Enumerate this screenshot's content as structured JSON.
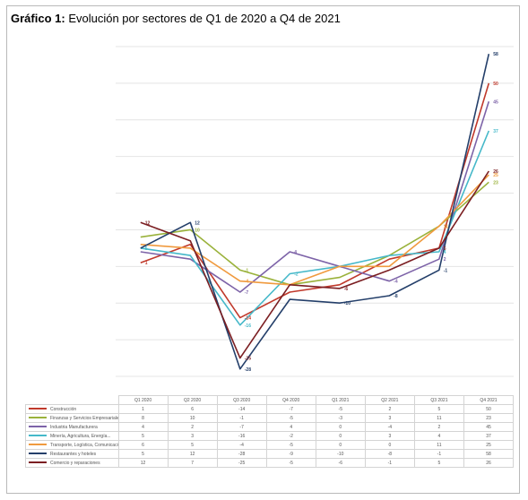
{
  "title": {
    "prefix": "Gráfico 1:",
    "text": "Evolución por sectores de Q1 de 2020 a Q4  de 2021"
  },
  "chart_data": {
    "type": "line",
    "categories": [
      "Q1 2020",
      "Q2 2020",
      "Q3 2020",
      "Q4 2020",
      "Q1 2021",
      "Q2 2021",
      "Q3 2021",
      "Q4 2021"
    ],
    "ylim": [
      -30,
      60
    ],
    "grid": true,
    "legend": "table-below",
    "series": [
      {
        "name": "Construcción",
        "color": "#c0392b",
        "values": [
          1,
          6,
          -14,
          -7,
          -5,
          2,
          5,
          50
        ]
      },
      {
        "name": "Finanzas y Servicios Empresariales",
        "color": "#9ab23b",
        "values": [
          8,
          10,
          -1,
          -5,
          -3,
          3,
          11,
          23
        ]
      },
      {
        "name": "Industria Manufacturera",
        "color": "#7d63a8",
        "values": [
          4,
          2,
          -7,
          4,
          0,
          -4,
          2,
          45
        ]
      },
      {
        "name": "Minería, Agricultura, Energía...",
        "color": "#45b8c9",
        "values": [
          5,
          3,
          -16,
          -2,
          0,
          3,
          4,
          37
        ]
      },
      {
        "name": "Transporte, Logística, Comunicaciones...",
        "color": "#f09a3e",
        "values": [
          6,
          5,
          -4,
          -5,
          0,
          0,
          11,
          25
        ]
      },
      {
        "name": "Restaurantes y hoteles",
        "color": "#243f6a",
        "values": [
          5,
          12,
          -28,
          -9,
          -10,
          -8,
          -1,
          58
        ]
      },
      {
        "name": "Comercio y reparaciones",
        "color": "#7b1e22",
        "values": [
          12,
          7,
          -25,
          -5,
          -6,
          -1,
          5,
          26
        ]
      }
    ],
    "point_labels": [
      {
        "series": 0,
        "index": 0,
        "text": "1"
      },
      {
        "series": 0,
        "index": 2,
        "text": "-14"
      },
      {
        "series": 0,
        "index": 7,
        "text": "50"
      },
      {
        "series": 1,
        "index": 1,
        "text": "10"
      },
      {
        "series": 1,
        "index": 2,
        "text": "-1"
      },
      {
        "series": 1,
        "index": 6,
        "text": "11"
      },
      {
        "series": 1,
        "index": 7,
        "text": "23"
      },
      {
        "series": 2,
        "index": 2,
        "text": "-7"
      },
      {
        "series": 2,
        "index": 3,
        "text": "4"
      },
      {
        "series": 2,
        "index": 5,
        "text": "-4"
      },
      {
        "series": 2,
        "index": 6,
        "text": "2"
      },
      {
        "series": 2,
        "index": 7,
        "text": "45"
      },
      {
        "series": 3,
        "index": 0,
        "text": "5"
      },
      {
        "series": 3,
        "index": 2,
        "text": "-16"
      },
      {
        "series": 3,
        "index": 3,
        "text": "-2"
      },
      {
        "series": 3,
        "index": 6,
        "text": "4"
      },
      {
        "series": 3,
        "index": 7,
        "text": "37"
      },
      {
        "series": 4,
        "index": 2,
        "text": "-4"
      },
      {
        "series": 4,
        "index": 6,
        "text": "11"
      },
      {
        "series": 4,
        "index": 7,
        "text": "25"
      },
      {
        "series": 5,
        "index": 1,
        "text": "12"
      },
      {
        "series": 5,
        "index": 2,
        "text": "-28"
      },
      {
        "series": 5,
        "index": 4,
        "text": "-10"
      },
      {
        "series": 5,
        "index": 5,
        "text": "-8"
      },
      {
        "series": 5,
        "index": 6,
        "text": "-1"
      },
      {
        "series": 5,
        "index": 7,
        "text": "58"
      },
      {
        "series": 6,
        "index": 0,
        "text": "12"
      },
      {
        "series": 6,
        "index": 2,
        "text": "-25"
      },
      {
        "series": 6,
        "index": 4,
        "text": "-6"
      },
      {
        "series": 6,
        "index": 6,
        "text": "5"
      },
      {
        "series": 6,
        "index": 7,
        "text": "26"
      }
    ]
  }
}
